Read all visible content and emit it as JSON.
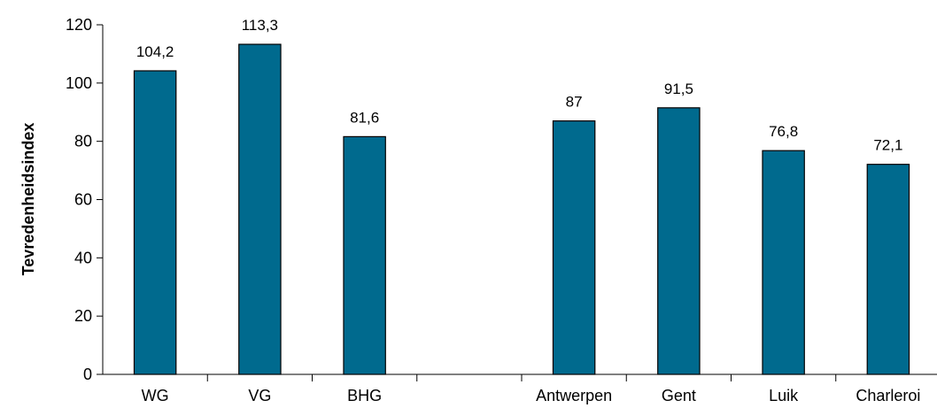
{
  "chart_data": {
    "type": "bar",
    "title": "",
    "xlabel": "",
    "ylabel": "Tevredenheidsindex",
    "ylim": [
      0,
      120
    ],
    "yticks": [
      0,
      20,
      40,
      60,
      80,
      100,
      120
    ],
    "grid": false,
    "legend": "none",
    "bar_color": "#006A8E",
    "categories": [
      "WG",
      "VG",
      "BHG",
      "",
      "Antwerpen",
      "Gent",
      "Luik",
      "Charleroi"
    ],
    "values": [
      104.2,
      113.3,
      81.6,
      null,
      87,
      91.5,
      76.8,
      72.1
    ],
    "data_labels": [
      "104,2",
      "113,3",
      "81,6",
      "",
      "87",
      "91,5",
      "76,8",
      "72,1"
    ]
  }
}
